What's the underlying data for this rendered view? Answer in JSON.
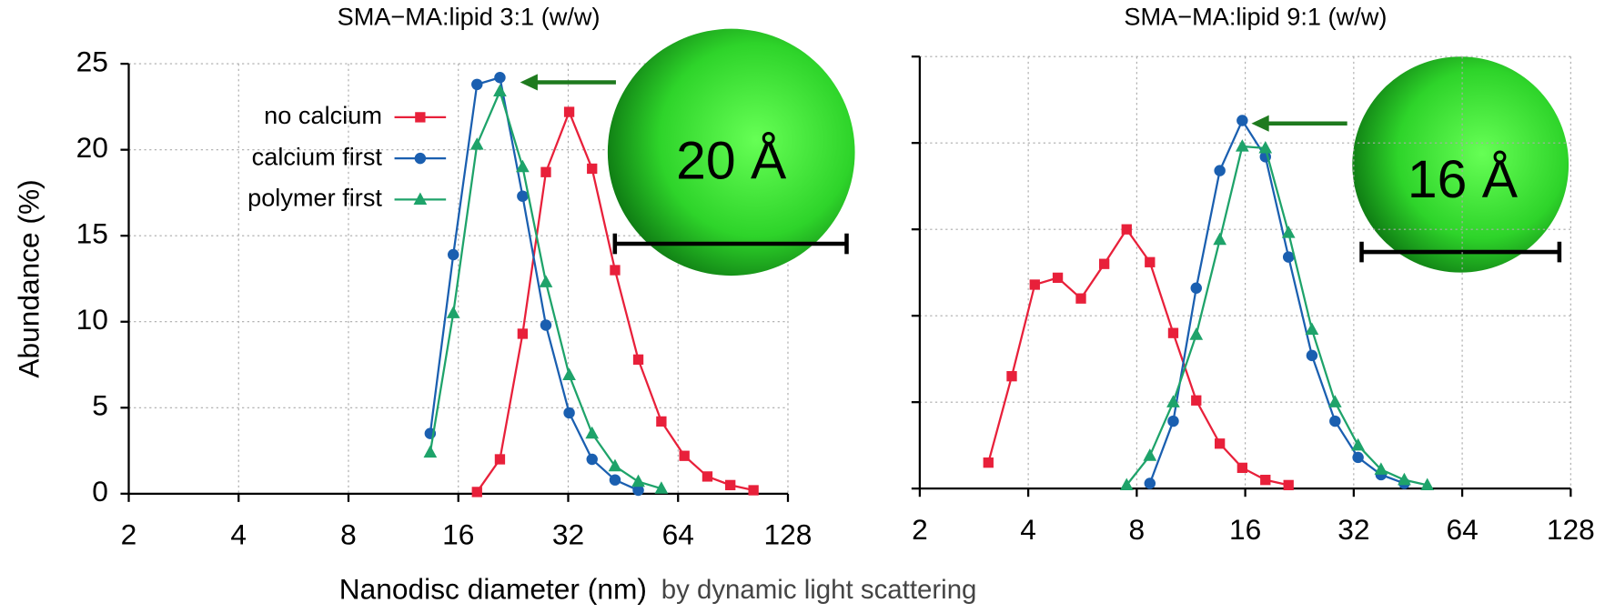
{
  "chart_data": [
    {
      "type": "line",
      "title": "SMA−MA:lipid 3:1 (w/w)",
      "xlabel": "Nanodisc diameter (nm)",
      "ylabel": "Abundance (%)",
      "note": "by dynamic light scattering",
      "annotation": "20 Å",
      "xscale": "log2",
      "xlim": [
        2,
        128
      ],
      "xticks": [
        2,
        4,
        8,
        16,
        32,
        64,
        128
      ],
      "ylim": [
        0,
        25
      ],
      "yticks": [
        0,
        5,
        10,
        15,
        20,
        25
      ],
      "ytick_labels": true,
      "grid": true,
      "legend": "upper left",
      "series": [
        {
          "name": "no calcium",
          "color": "#e8203a",
          "marker": "square",
          "x": [
            18,
            20.8,
            24,
            27.8,
            32.2,
            37.2,
            43,
            49.8,
            57.6,
            66.6,
            77,
            89,
            103
          ],
          "values": [
            0.1,
            2.0,
            9.3,
            18.7,
            22.2,
            18.9,
            13.0,
            7.8,
            4.2,
            2.2,
            1.0,
            0.5,
            0.2
          ]
        },
        {
          "name": "calcium first",
          "color": "#1a5fb0",
          "marker": "circle",
          "x": [
            13.4,
            15.5,
            18,
            20.8,
            24,
            27.8,
            32.2,
            37.2,
            43,
            49.8
          ],
          "values": [
            3.5,
            13.9,
            23.8,
            24.2,
            17.3,
            9.8,
            4.7,
            2.0,
            0.8,
            0.2
          ]
        },
        {
          "name": "polymer first",
          "color": "#1ea36a",
          "marker": "triangle",
          "x": [
            13.4,
            15.5,
            18,
            20.8,
            24,
            27.8,
            32.2,
            37.2,
            43,
            49.8,
            57.6
          ],
          "values": [
            2.4,
            10.5,
            20.3,
            23.4,
            19.0,
            12.3,
            6.9,
            3.5,
            1.6,
            0.7,
            0.3
          ]
        }
      ]
    },
    {
      "type": "line",
      "title": "SMA−MA:lipid 9:1 (w/w)",
      "annotation": "16 Å",
      "xscale": "log2",
      "xlim": [
        2,
        128
      ],
      "xticks": [
        2,
        4,
        8,
        16,
        32,
        64,
        128
      ],
      "ylim": [
        0,
        25
      ],
      "yticks": [
        0,
        5,
        10,
        15,
        20,
        25
      ],
      "ytick_labels": false,
      "grid": true,
      "series": [
        {
          "color": "#e8203a",
          "marker": "square",
          "x": [
            3.1,
            3.6,
            4.17,
            4.83,
            5.6,
            6.5,
            7.5,
            8.7,
            10.1,
            11.7,
            13.6,
            15.7,
            18.2,
            21.1
          ],
          "values": [
            1.5,
            6.5,
            11.8,
            12.2,
            11.0,
            13.0,
            15.0,
            13.1,
            9.0,
            5.1,
            2.6,
            1.2,
            0.5,
            0.2
          ]
        },
        {
          "color": "#1a5fb0",
          "marker": "circle",
          "x": [
            8.7,
            10.1,
            11.7,
            13.6,
            15.7,
            18.2,
            21.1,
            24.5,
            28.4,
            32.9,
            38.1,
            44.2
          ],
          "values": [
            0.3,
            3.9,
            11.6,
            18.4,
            21.3,
            19.2,
            13.4,
            7.7,
            3.9,
            1.8,
            0.8,
            0.3
          ]
        },
        {
          "color": "#1ea36a",
          "marker": "triangle",
          "x": [
            7.5,
            8.7,
            10.1,
            11.7,
            13.6,
            15.7,
            18.2,
            21.1,
            24.5,
            28.4,
            32.9,
            38.1,
            44.2,
            51.2
          ],
          "values": [
            0.2,
            1.9,
            5.0,
            8.9,
            14.4,
            19.8,
            19.7,
            14.8,
            9.2,
            5.0,
            2.5,
            1.1,
            0.5,
            0.2
          ]
        }
      ]
    }
  ]
}
